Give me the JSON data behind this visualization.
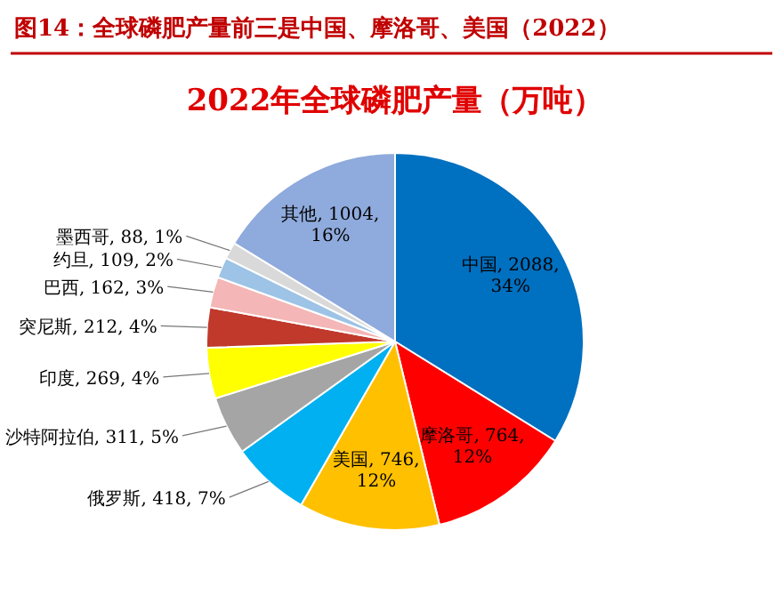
{
  "chart_data": {
    "type": "pie",
    "title": "图14：全球磷肥产量前三是中国、摩洛哥、美国（2022）",
    "subtitle": "2022年全球磷肥产量（万吨）",
    "categories": [
      "中国",
      "摩洛哥",
      "美国",
      "俄罗斯",
      "沙特阿拉伯",
      "印度",
      "突尼斯",
      "巴西",
      "约旦",
      "墨西哥",
      "其他"
    ],
    "values": [
      2088,
      764,
      746,
      418,
      311,
      269,
      212,
      162,
      109,
      88,
      1004
    ],
    "value_labels": [
      "2088, 34%",
      "764, 12%",
      "746, 12%",
      "418, 7%",
      "311, 5%",
      "269, 4%",
      "212, 4%",
      "162, 3%",
      "109, 2%",
      "88, 1%",
      "1004, 16%"
    ],
    "colors": [
      "#0070c0",
      "#ff0000",
      "#ffc000",
      "#00b0f0",
      "#a5a5a5",
      "#ffff00",
      "#c0392b",
      "#f4b6b6",
      "#9dc3e6",
      "#d9d9d9",
      "#8faadc"
    ]
  }
}
